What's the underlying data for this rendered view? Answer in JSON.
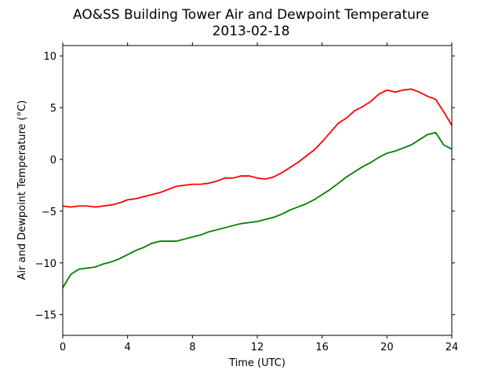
{
  "chart_data": {
    "type": "line",
    "title": "AO&SS Building Tower Air and Dewpoint Temperature",
    "subtitle": "2013-02-18",
    "xlabel": "Time (UTC)",
    "ylabel": "Air and Dewpoint Temperature (°C)",
    "xlim": [
      0,
      24
    ],
    "ylim": [
      -17,
      11
    ],
    "xticks": [
      0,
      4,
      8,
      12,
      16,
      20,
      24
    ],
    "yticks": [
      -15,
      -10,
      -5,
      0,
      5,
      10
    ],
    "grid": false,
    "series": [
      {
        "color": "#ff0000",
        "x": [
          0,
          0.5,
          1,
          1.5,
          2,
          2.5,
          3,
          3.5,
          4,
          4.5,
          5,
          5.5,
          6,
          6.5,
          7,
          7.5,
          8,
          8.5,
          9,
          9.5,
          10,
          10.5,
          11,
          11.5,
          12,
          12.5,
          13,
          13.5,
          14,
          14.5,
          15,
          15.5,
          16,
          16.5,
          17,
          17.5,
          18,
          18.5,
          19,
          19.5,
          20,
          20.5,
          21,
          21.5,
          22,
          22.5,
          23,
          23.5,
          24
        ],
        "y": [
          -4.5,
          -4.6,
          -4.5,
          -4.5,
          -4.6,
          -4.5,
          -4.4,
          -4.2,
          -3.9,
          -3.8,
          -3.6,
          -3.4,
          -3.2,
          -2.9,
          -2.6,
          -2.5,
          -2.4,
          -2.4,
          -2.3,
          -2.1,
          -1.8,
          -1.8,
          -1.6,
          -1.6,
          -1.8,
          -1.9,
          -1.7,
          -1.3,
          -0.8,
          -0.3,
          0.3,
          0.9,
          1.7,
          2.6,
          3.5,
          4.0,
          4.7,
          5.1,
          5.6,
          6.3,
          6.7,
          6.5,
          6.7,
          6.8,
          6.5,
          6.1,
          5.8,
          4.6,
          3.3
        ]
      },
      {
        "color": "#008000",
        "x": [
          0,
          0.5,
          1,
          1.5,
          2,
          2.5,
          3,
          3.5,
          4,
          4.5,
          5,
          5.5,
          6,
          6.5,
          7,
          7.5,
          8,
          8.5,
          9,
          9.5,
          10,
          10.5,
          11,
          11.5,
          12,
          12.5,
          13,
          13.5,
          14,
          14.5,
          15,
          15.5,
          16,
          16.5,
          17,
          17.5,
          18,
          18.5,
          19,
          19.5,
          20,
          20.5,
          21,
          21.5,
          22,
          22.5,
          23,
          23.5,
          24
        ],
        "y": [
          -12.4,
          -11.1,
          -10.6,
          -10.5,
          -10.4,
          -10.1,
          -9.9,
          -9.6,
          -9.2,
          -8.8,
          -8.5,
          -8.1,
          -7.9,
          -7.9,
          -7.9,
          -7.7,
          -7.5,
          -7.3,
          -7.0,
          -6.8,
          -6.6,
          -6.4,
          -6.2,
          -6.1,
          -6.0,
          -5.8,
          -5.6,
          -5.3,
          -4.9,
          -4.6,
          -4.3,
          -3.9,
          -3.4,
          -2.9,
          -2.3,
          -1.7,
          -1.2,
          -0.7,
          -0.3,
          0.2,
          0.6,
          0.8,
          1.1,
          1.4,
          1.9,
          2.4,
          2.6,
          1.4,
          1.0
        ]
      }
    ]
  }
}
